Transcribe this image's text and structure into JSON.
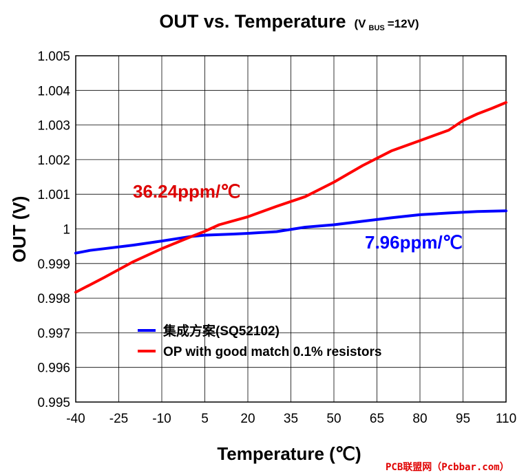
{
  "chart_data": {
    "type": "line",
    "title": "OUT vs. Temperature",
    "title_condition": {
      "open": "(V",
      "subscript": "BUS",
      "close": "=12V)"
    },
    "xlabel": "Temperature (℃)",
    "ylabel": "OUT (V)",
    "xlim": [
      -40,
      110
    ],
    "ylim": [
      0.995,
      1.005
    ],
    "x_ticks": [
      -40,
      -25,
      -10,
      5,
      20,
      35,
      50,
      65,
      80,
      95,
      110
    ],
    "x_tick_labels": [
      "-40",
      "-25",
      "-10",
      "5",
      "20",
      "35",
      "50",
      "65",
      "80",
      "95",
      "110"
    ],
    "y_ticks": [
      0.995,
      0.996,
      0.997,
      0.998,
      0.999,
      1.0,
      1.001,
      1.002,
      1.003,
      1.004,
      1.005
    ],
    "y_tick_labels": [
      "0.995",
      "0.996",
      "0.997",
      "0.998",
      "0.999",
      "1",
      "1.001",
      "1.002",
      "1.003",
      "1.004",
      "1.005"
    ],
    "grid": true,
    "legend_position": "bottom-center",
    "series": [
      {
        "name": "集成方案(SQ52102)",
        "color": "#0000ff",
        "x": [
          -40,
          -35,
          -30,
          -20,
          -10,
          0,
          5,
          15,
          20,
          30,
          40,
          50,
          60,
          70,
          80,
          90,
          100,
          110
        ],
        "y": [
          0.9993,
          0.99938,
          0.99943,
          0.99953,
          0.99965,
          0.99978,
          0.99982,
          0.99985,
          0.99987,
          0.99992,
          1.00005,
          1.00012,
          1.00022,
          1.00032,
          1.00041,
          1.00046,
          1.0005,
          1.00052
        ]
      },
      {
        "name": "OP with good match 0.1% resistors",
        "color": "#ff0000",
        "x": [
          -40,
          -30,
          -20,
          -10,
          0,
          5,
          10,
          20,
          30,
          40,
          50,
          60,
          70,
          80,
          90,
          95,
          100,
          105,
          110
        ],
        "y": [
          0.99817,
          0.9986,
          0.99905,
          0.99943,
          0.99977,
          0.99993,
          1.00012,
          1.00035,
          1.00065,
          1.00093,
          1.00135,
          1.00183,
          1.00225,
          1.00255,
          1.00285,
          1.00313,
          1.00332,
          1.00348,
          1.00365
        ]
      }
    ],
    "annotations": [
      {
        "text": "36.24ppm/℃",
        "color": "#dd0000",
        "series": 1
      },
      {
        "text": "7.96ppm/℃",
        "color": "#0000ff",
        "series": 0
      }
    ]
  },
  "watermark": "PCB联盟网（Pcbbar.com）"
}
